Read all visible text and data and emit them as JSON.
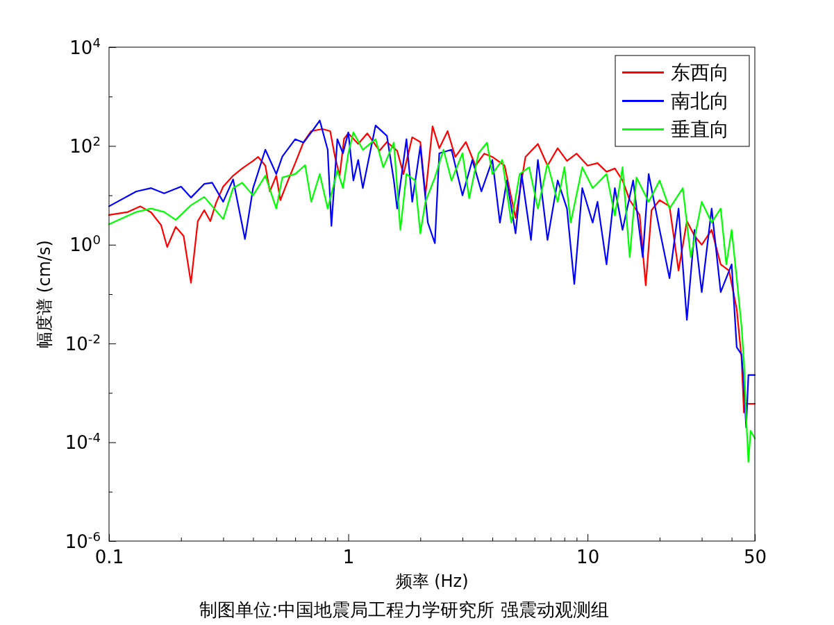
{
  "chart_data": {
    "type": "line",
    "xlabel": "频率 (Hz)",
    "ylabel": "幅度谱 (cm/s)",
    "annotations": [
      "制图单位:中国地震局工程力学研究所 强震动观测组"
    ],
    "log": "xy",
    "legend": "top right",
    "grid": false,
    "line_style": "solid",
    "marker": "none",
    "xlim": [
      0.1,
      50
    ],
    "ylim": [
      1e-06,
      10000
    ],
    "xticks": [
      0.1,
      {
        "value": 0.2,
        "label": null
      },
      {
        "value": 0.3,
        "label": null
      },
      {
        "value": 0.4,
        "label": null
      },
      {
        "value": 0.5,
        "label": null
      },
      {
        "value": 0.6,
        "label": null
      },
      {
        "value": 0.7,
        "label": null
      },
      {
        "value": 0.8,
        "label": null
      },
      {
        "value": 0.9,
        "label": null
      },
      1,
      {
        "value": 2,
        "label": null
      },
      {
        "value": 3,
        "label": null
      },
      {
        "value": 4,
        "label": null
      },
      {
        "value": 5,
        "label": null
      },
      {
        "value": 6,
        "label": null
      },
      {
        "value": 7,
        "label": null
      },
      {
        "value": 8,
        "label": null
      },
      {
        "value": 9,
        "label": null
      },
      10,
      {
        "value": 20,
        "label": null
      },
      {
        "value": 30,
        "label": null
      },
      {
        "value": 40,
        "label": null
      },
      50
    ],
    "yticks": [
      {
        "value": 1e-06,
        "label": "10$^{-6}$"
      },
      {
        "value": 1e-05,
        "label": null
      },
      {
        "value": 0.0001,
        "label": "10$^{-4}$"
      },
      {
        "value": 0.001,
        "label": null
      },
      {
        "value": 0.01,
        "label": "10$^{-2}$"
      },
      {
        "value": 0.1,
        "label": null
      },
      {
        "value": 1,
        "label": "10$^{0}$"
      },
      {
        "value": 10,
        "label": null
      },
      {
        "value": 100,
        "label": "10$^{2}$"
      },
      {
        "value": 1000,
        "label": null
      },
      {
        "value": 10000,
        "label": "10$^{4}$"
      }
    ],
    "series": [
      {
        "name": "东西向",
        "color": "#ff0000",
        "x": [
          0.1,
          0.12,
          0.135,
          0.15,
          0.165,
          0.175,
          0.19,
          0.205,
          0.22,
          0.235,
          0.25,
          0.265,
          0.28,
          0.3,
          0.33,
          0.36,
          0.4,
          0.42,
          0.45,
          0.47,
          0.5,
          0.52,
          0.56,
          0.6,
          0.65,
          0.7,
          0.78,
          0.84,
          0.88,
          0.92,
          0.96,
          1.0,
          1.1,
          1.2,
          1.35,
          1.45,
          1.6,
          1.7,
          1.85,
          2.0,
          2.1,
          2.25,
          2.4,
          2.6,
          2.8,
          3.1,
          3.4,
          3.7,
          4.0,
          4.5,
          5.0,
          5.5,
          6.2,
          6.8,
          7.5,
          8.2,
          9.0,
          10,
          11,
          12,
          13,
          14,
          15,
          16.5,
          17.5,
          18.5,
          20,
          22,
          24,
          26,
          28,
          30,
          33,
          36,
          39,
          42,
          44,
          45,
          46,
          48,
          50
        ],
        "values": [
          4,
          4.6,
          6,
          4.5,
          2.5,
          0.9,
          2.3,
          1.5,
          0.17,
          3,
          5,
          3,
          7,
          15,
          25,
          35,
          50,
          60,
          40,
          12,
          25,
          8,
          20,
          45,
          120,
          200,
          220,
          200,
          60,
          25,
          140,
          180,
          110,
          180,
          80,
          120,
          80,
          27,
          150,
          120,
          10,
          250,
          90,
          200,
          60,
          120,
          40,
          70,
          60,
          40,
          3.5,
          60,
          110,
          40,
          90,
          50,
          70,
          40,
          45,
          30,
          35,
          20,
          8,
          4,
          0.15,
          5,
          8,
          6,
          0.3,
          3,
          1.5,
          1,
          2,
          0.4,
          0.3,
          0.05,
          0.005,
          0.0004,
          0.0006,
          0.0006,
          0.0006
        ]
      },
      {
        "name": "南北向",
        "color": "#0000ff",
        "x": [
          0.1,
          0.13,
          0.15,
          0.17,
          0.2,
          0.22,
          0.25,
          0.27,
          0.3,
          0.33,
          0.37,
          0.4,
          0.45,
          0.5,
          0.53,
          0.6,
          0.65,
          0.7,
          0.76,
          0.82,
          0.85,
          0.9,
          0.95,
          1.0,
          1.05,
          1.1,
          1.15,
          1.3,
          1.45,
          1.55,
          1.6,
          1.75,
          1.85,
          2.0,
          2.15,
          2.3,
          2.4,
          2.7,
          3.0,
          3.3,
          3.6,
          4.0,
          4.3,
          4.6,
          5.0,
          5.3,
          5.8,
          6.2,
          6.8,
          7.5,
          8.2,
          8.8,
          9.5,
          10.5,
          11,
          12,
          13,
          14,
          15.5,
          17,
          18,
          20,
          22,
          24,
          26,
          28,
          30,
          33,
          36,
          40,
          42,
          44,
          45,
          46,
          47,
          50
        ],
        "values": [
          6,
          12,
          14,
          11,
          15,
          9,
          17,
          18,
          7.4,
          21,
          1.3,
          14,
          84,
          27,
          61,
          137,
          117,
          188,
          327,
          84,
          2.4,
          137,
          71,
          188,
          20,
          52,
          14,
          260,
          160,
          20,
          5.4,
          137,
          7.4,
          98,
          2.8,
          1.07,
          71,
          84,
          10,
          52,
          12,
          52,
          2.8,
          20,
          1.7,
          27,
          1.25,
          52,
          1.25,
          20,
          5.4,
          0.16,
          14,
          2.8,
          7.4,
          0.4,
          14,
          2,
          20,
          0.56,
          27,
          2,
          0.21,
          5.4,
          0.03,
          2,
          0.11,
          5.4,
          0.11,
          0.4,
          0.0084,
          0.006,
          0.0014,
          0.0002,
          0.0023,
          0.0023
        ]
      },
      {
        "name": "垂直向",
        "color": "#00ff00",
        "x": [
          0.1,
          0.13,
          0.15,
          0.17,
          0.19,
          0.22,
          0.25,
          0.3,
          0.33,
          0.36,
          0.4,
          0.45,
          0.5,
          0.53,
          0.6,
          0.66,
          0.7,
          0.76,
          0.82,
          0.9,
          0.95,
          1.0,
          1.05,
          1.15,
          1.3,
          1.4,
          1.55,
          1.65,
          1.75,
          1.9,
          2.0,
          2.1,
          2.3,
          2.5,
          2.7,
          3.0,
          3.2,
          3.5,
          3.8,
          4.0,
          4.4,
          4.8,
          5.2,
          5.7,
          6.2,
          6.8,
          7.5,
          8,
          8.5,
          9.5,
          10.5,
          12,
          13,
          14,
          15,
          16,
          18,
          20,
          22,
          25,
          27,
          30,
          33,
          36,
          38,
          40,
          42,
          44,
          45,
          46,
          47,
          48,
          50
        ],
        "values": [
          2.6,
          4.6,
          5.4,
          4.6,
          3.2,
          6.3,
          9.3,
          3.3,
          14,
          18,
          10,
          25,
          5.4,
          23,
          27,
          41,
          7.4,
          27,
          5.4,
          32,
          14,
          71,
          188,
          84,
          137,
          37,
          117,
          2,
          27,
          20,
          1.7,
          7.4,
          23,
          84,
          20,
          71,
          8.7,
          71,
          117,
          27,
          52,
          2.8,
          27,
          37,
          5.4,
          44,
          7.4,
          37,
          2.8,
          37,
          14,
          27,
          3.9,
          37,
          0.56,
          23,
          7.4,
          20,
          5.4,
          14,
          0.56,
          7.4,
          2.8,
          5.4,
          0.4,
          2,
          0.21,
          0.022,
          0.0044,
          0.00033,
          4e-05,
          0.00017,
          0.00012
        ]
      }
    ]
  }
}
